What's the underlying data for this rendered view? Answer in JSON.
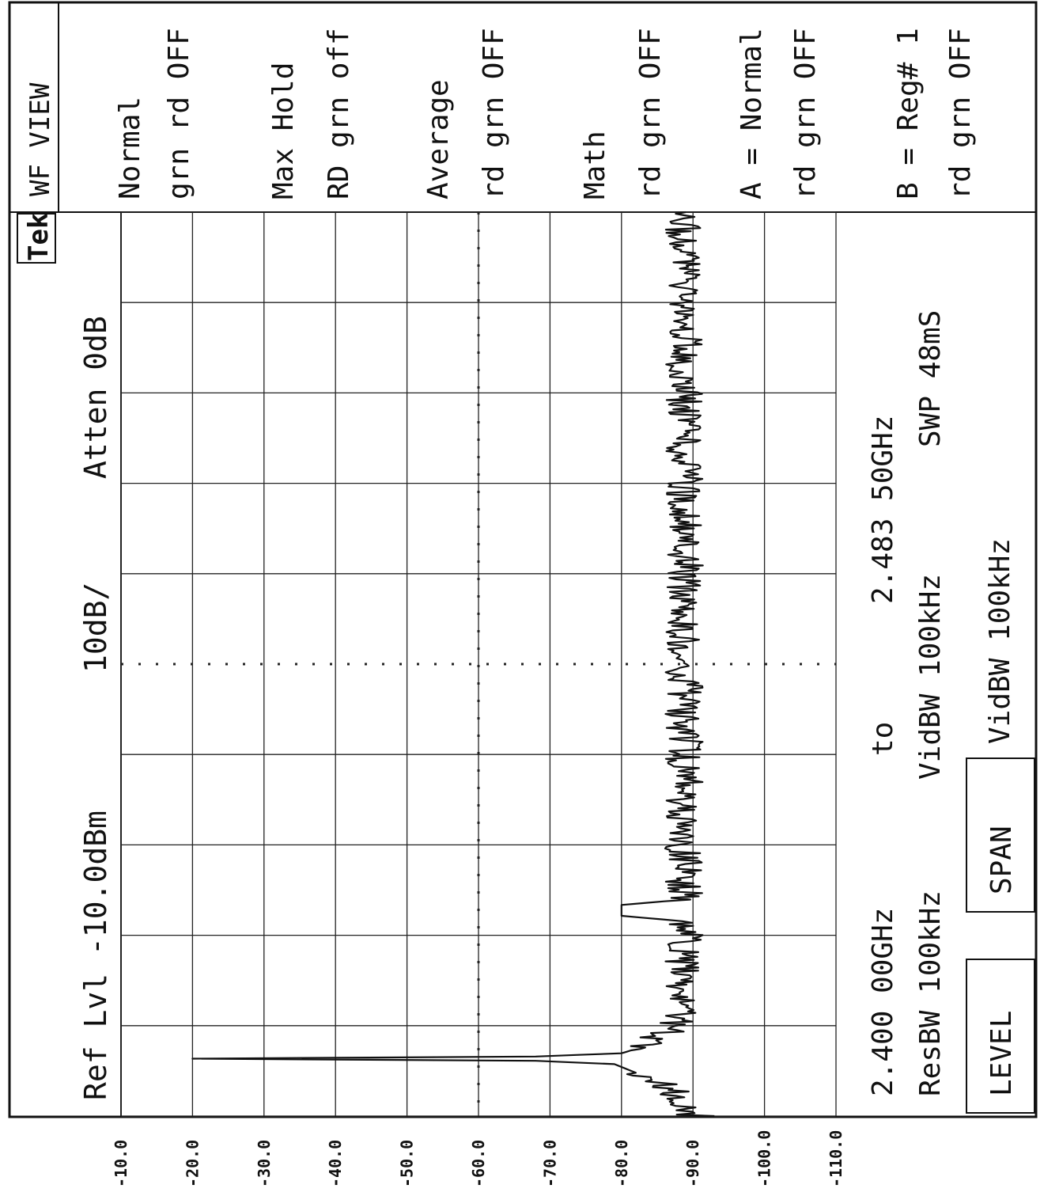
{
  "header": {
    "logo": "Tek",
    "ref_level": "Ref Lvl -10.0dBm",
    "scale": "10dB/",
    "atten": "Atten 0dB"
  },
  "footer": {
    "start_freq": "2.400 00GHz",
    "to_label": "to",
    "stop_freq": "2.483 50GHz",
    "res_bw": "ResBW 100kHz",
    "vid_bw": "VidBW 100kHz",
    "sweep": "SWP 48mS",
    "vid_bw_menu": "VidBW 100kHz",
    "level_button": "LEVEL",
    "span_button": "SPAN"
  },
  "menu": {
    "title": "WF VIEW",
    "items": [
      {
        "label": "Normal",
        "state": "grn rd OFF"
      },
      {
        "label": "Max Hold",
        "state": "RD grn off"
      },
      {
        "label": "Average",
        "state": "rd grn OFF"
      },
      {
        "label": "Math",
        "state": "rd grn OFF"
      },
      {
        "label": "A = Normal",
        "state": "rd grn OFF"
      },
      {
        "label": "B = Reg# 1",
        "state": "rd grn OFF"
      }
    ]
  },
  "chart_data": {
    "type": "line",
    "xlabel": "",
    "ylabel": "",
    "xlim": [
      2.4,
      2.4835
    ],
    "ylim": [
      -10,
      -110
    ],
    "y_ticks": [
      "-10.0",
      "-20.0",
      "-30.0",
      "-40.0",
      "-50.0",
      "-60.0",
      "-70.0",
      "-80.0",
      "-90.0",
      "-100.0",
      "-110.0"
    ],
    "grid": true,
    "series": [
      {
        "values": [
          [
            2.4,
            -90.5
          ],
          [
            2.4004,
            -88.5
          ],
          [
            2.4008,
            -89.5
          ],
          [
            2.4012,
            -87.5
          ],
          [
            2.4016,
            -88.0
          ],
          [
            2.402,
            -86.5
          ],
          [
            2.4024,
            -87.5
          ],
          [
            2.4028,
            -86.0
          ],
          [
            2.4032,
            -85.5
          ],
          [
            2.4036,
            -84.5
          ],
          [
            2.404,
            -82.0
          ],
          [
            2.4044,
            -80.5
          ],
          [
            2.4048,
            -79.0
          ],
          [
            2.4051,
            -68.0
          ],
          [
            2.4053,
            -20.0
          ],
          [
            2.4055,
            -68.0
          ],
          [
            2.4058,
            -80.0
          ],
          [
            2.4062,
            -82.0
          ],
          [
            2.4066,
            -83.5
          ],
          [
            2.407,
            -84.5
          ],
          [
            2.4074,
            -85.0
          ],
          [
            2.4078,
            -86.5
          ],
          [
            2.4082,
            -87.0
          ],
          [
            2.4086,
            -87.5
          ],
          [
            2.409,
            -88.0
          ],
          [
            2.4094,
            -88.5
          ],
          [
            2.4098,
            -89.0
          ],
          [
            2.4102,
            -88.5
          ],
          [
            2.411,
            -89.0
          ],
          [
            2.412,
            -88.5
          ],
          [
            2.413,
            -89.0
          ],
          [
            2.414,
            -88.5
          ],
          [
            2.415,
            -89.0
          ],
          [
            2.416,
            -88.5
          ],
          [
            2.417,
            -89.0
          ],
          [
            2.418,
            -88.5
          ],
          [
            2.4185,
            -80.0
          ],
          [
            2.4195,
            -80.0
          ],
          [
            2.42,
            -89.0
          ],
          [
            2.4215,
            -88.5
          ],
          [
            2.423,
            -89.0
          ],
          [
            2.425,
            -88.5
          ],
          [
            2.427,
            -89.0
          ],
          [
            2.429,
            -88.5
          ],
          [
            2.431,
            -89.0
          ],
          [
            2.433,
            -88.5
          ],
          [
            2.435,
            -89.0
          ],
          [
            2.437,
            -88.5
          ],
          [
            2.439,
            -89.0
          ],
          [
            2.441,
            -88.5
          ],
          [
            2.443,
            -89.0
          ],
          [
            2.445,
            -88.5
          ],
          [
            2.447,
            -89.0
          ],
          [
            2.449,
            -88.5
          ],
          [
            2.451,
            -89.0
          ],
          [
            2.453,
            -88.5
          ],
          [
            2.455,
            -89.0
          ],
          [
            2.457,
            -88.5
          ],
          [
            2.459,
            -89.0
          ],
          [
            2.461,
            -88.5
          ],
          [
            2.463,
            -89.0
          ],
          [
            2.465,
            -88.5
          ],
          [
            2.467,
            -89.0
          ],
          [
            2.469,
            -88.5
          ],
          [
            2.471,
            -89.0
          ],
          [
            2.473,
            -88.5
          ],
          [
            2.475,
            -89.0
          ],
          [
            2.477,
            -88.5
          ],
          [
            2.479,
            -89.0
          ],
          [
            2.481,
            -88.5
          ],
          [
            2.4835,
            -89.0
          ]
        ]
      }
    ]
  }
}
